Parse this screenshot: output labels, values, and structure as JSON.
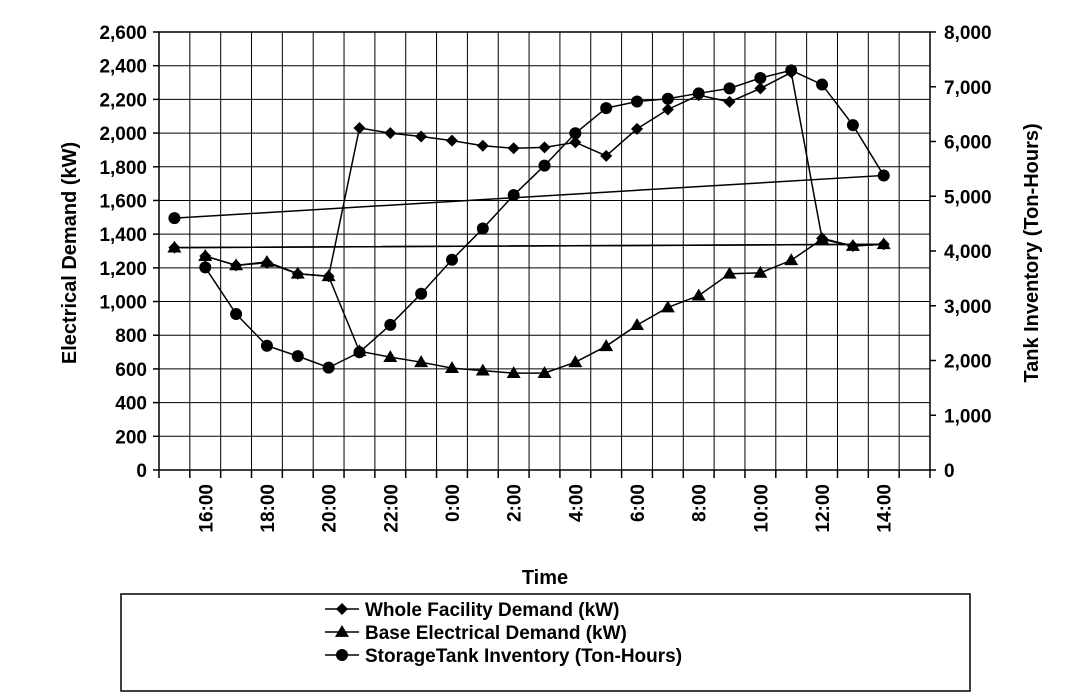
{
  "chart_data": {
    "type": "line",
    "xlabel": "Time",
    "y1label": "Electrical Demand (kW)",
    "y2label": "Tank Inventory (Ton-Hours)",
    "y1lim": [
      0,
      2600
    ],
    "y2lim": [
      0,
      8000
    ],
    "y1ticks": [
      "0",
      "200",
      "400",
      "600",
      "800",
      "1,000",
      "1,200",
      "1,400",
      "1,600",
      "1,800",
      "2,000",
      "2,200",
      "2,400",
      "2,600"
    ],
    "y2ticks": [
      "0",
      "1,000",
      "2,000",
      "3,000",
      "4,000",
      "5,000",
      "6,000",
      "7,000",
      "8,000"
    ],
    "x": [
      "15:00",
      "16:00",
      "17:00",
      "18:00",
      "19:00",
      "20:00",
      "21:00",
      "22:00",
      "23:00",
      "0:00",
      "1:00",
      "2:00",
      "3:00",
      "4:00",
      "5:00",
      "6:00",
      "7:00",
      "8:00",
      "9:00",
      "10:00",
      "11:00",
      "12:00",
      "13:00",
      "14:00",
      "15:00"
    ],
    "xticks_shown": [
      "16:00",
      "18:00",
      "20:00",
      "22:00",
      "0:00",
      "2:00",
      "4:00",
      "6:00",
      "8:00",
      "10:00",
      "12:00",
      "14:00"
    ],
    "grid": true,
    "legend_position": "bottom",
    "series": [
      {
        "name": "Whole Facility Demand (kW)",
        "axis": "y1",
        "marker": "diamond",
        "x": [
          "16:00",
          "17:00",
          "18:00",
          "19:00",
          "20:00",
          "21:00",
          "22:00",
          "23:00",
          "0:00",
          "1:00",
          "2:00",
          "3:00",
          "4:00",
          "5:00",
          "6:00",
          "7:00",
          "8:00",
          "9:00",
          "10:00",
          "11:00",
          "12:00",
          "13:00",
          "14:00",
          "15:00"
        ],
        "values": [
          1270,
          1215,
          1230,
          1165,
          1150,
          2030,
          2000,
          1980,
          1955,
          1925,
          1910,
          1915,
          1945,
          1865,
          2025,
          2140,
          2225,
          2185,
          2265,
          2360,
          1375,
          1330,
          1340,
          1320
        ]
      },
      {
        "name": "Base Electrical Demand (kW)",
        "axis": "y1",
        "marker": "triangle",
        "x": [
          "16:00",
          "17:00",
          "18:00",
          "19:00",
          "20:00",
          "21:00",
          "22:00",
          "23:00",
          "0:00",
          "1:00",
          "2:00",
          "3:00",
          "4:00",
          "5:00",
          "6:00",
          "7:00",
          "8:00",
          "9:00",
          "10:00",
          "11:00",
          "12:00",
          "13:00",
          "14:00",
          "15:00"
        ],
        "values": [
          1270,
          1215,
          1235,
          1165,
          1150,
          705,
          670,
          640,
          605,
          590,
          575,
          575,
          640,
          735,
          860,
          965,
          1035,
          1165,
          1170,
          1245,
          1370,
          1330,
          1340,
          1320
        ]
      },
      {
        "name": "StorageTank Inventory (Ton-Hours)",
        "axis": "y2",
        "marker": "circle",
        "x": [
          "16:00",
          "17:00",
          "18:00",
          "19:00",
          "20:00",
          "21:00",
          "22:00",
          "23:00",
          "0:00",
          "1:00",
          "2:00",
          "3:00",
          "4:00",
          "5:00",
          "6:00",
          "7:00",
          "8:00",
          "9:00",
          "10:00",
          "11:00",
          "12:00",
          "13:00",
          "14:00",
          "15:00"
        ],
        "values": [
          3700,
          2850,
          2270,
          2080,
          1870,
          2150,
          2650,
          3220,
          3840,
          4410,
          5020,
          5560,
          6150,
          6610,
          6730,
          6780,
          6880,
          6970,
          7160,
          7300,
          7040,
          6300,
          5380,
          4600
        ]
      }
    ]
  }
}
